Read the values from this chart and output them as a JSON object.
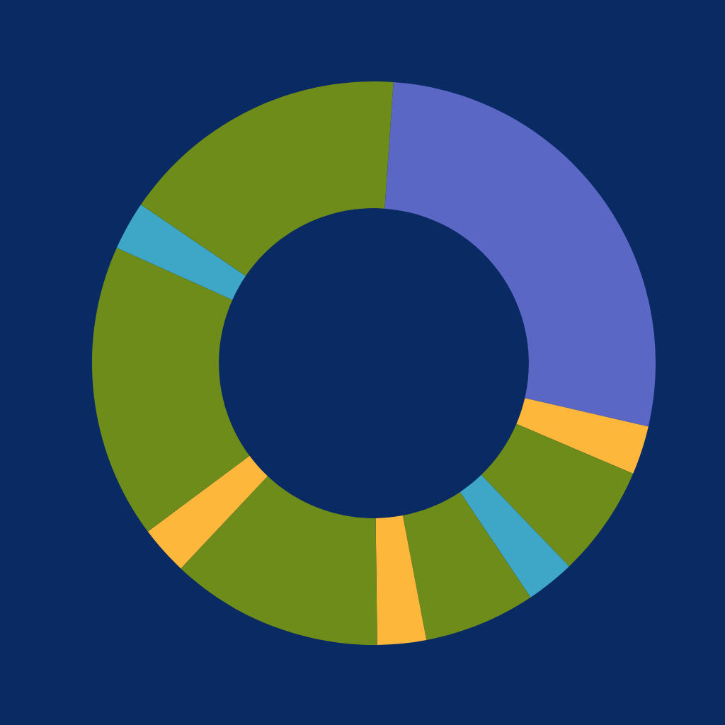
{
  "chart_data": {
    "type": "donut",
    "categories": [
      null,
      null,
      null,
      null,
      null,
      null,
      null,
      null,
      null,
      null,
      null
    ],
    "values": [
      27.5,
      2.8,
      6.4,
      2.8,
      6.4,
      2.8,
      12.2,
      2.8,
      16.9,
      2.8,
      16.6
    ],
    "colors": [
      "#5a67c4",
      "#fdb73a",
      "#6e8c1a",
      "#3ea7c7",
      "#6e8c1a",
      "#fdb73a",
      "#6e8c1a",
      "#fdb73a",
      "#6e8c1a",
      "#3ea7c7",
      "#6e8c1a"
    ]
  }
}
